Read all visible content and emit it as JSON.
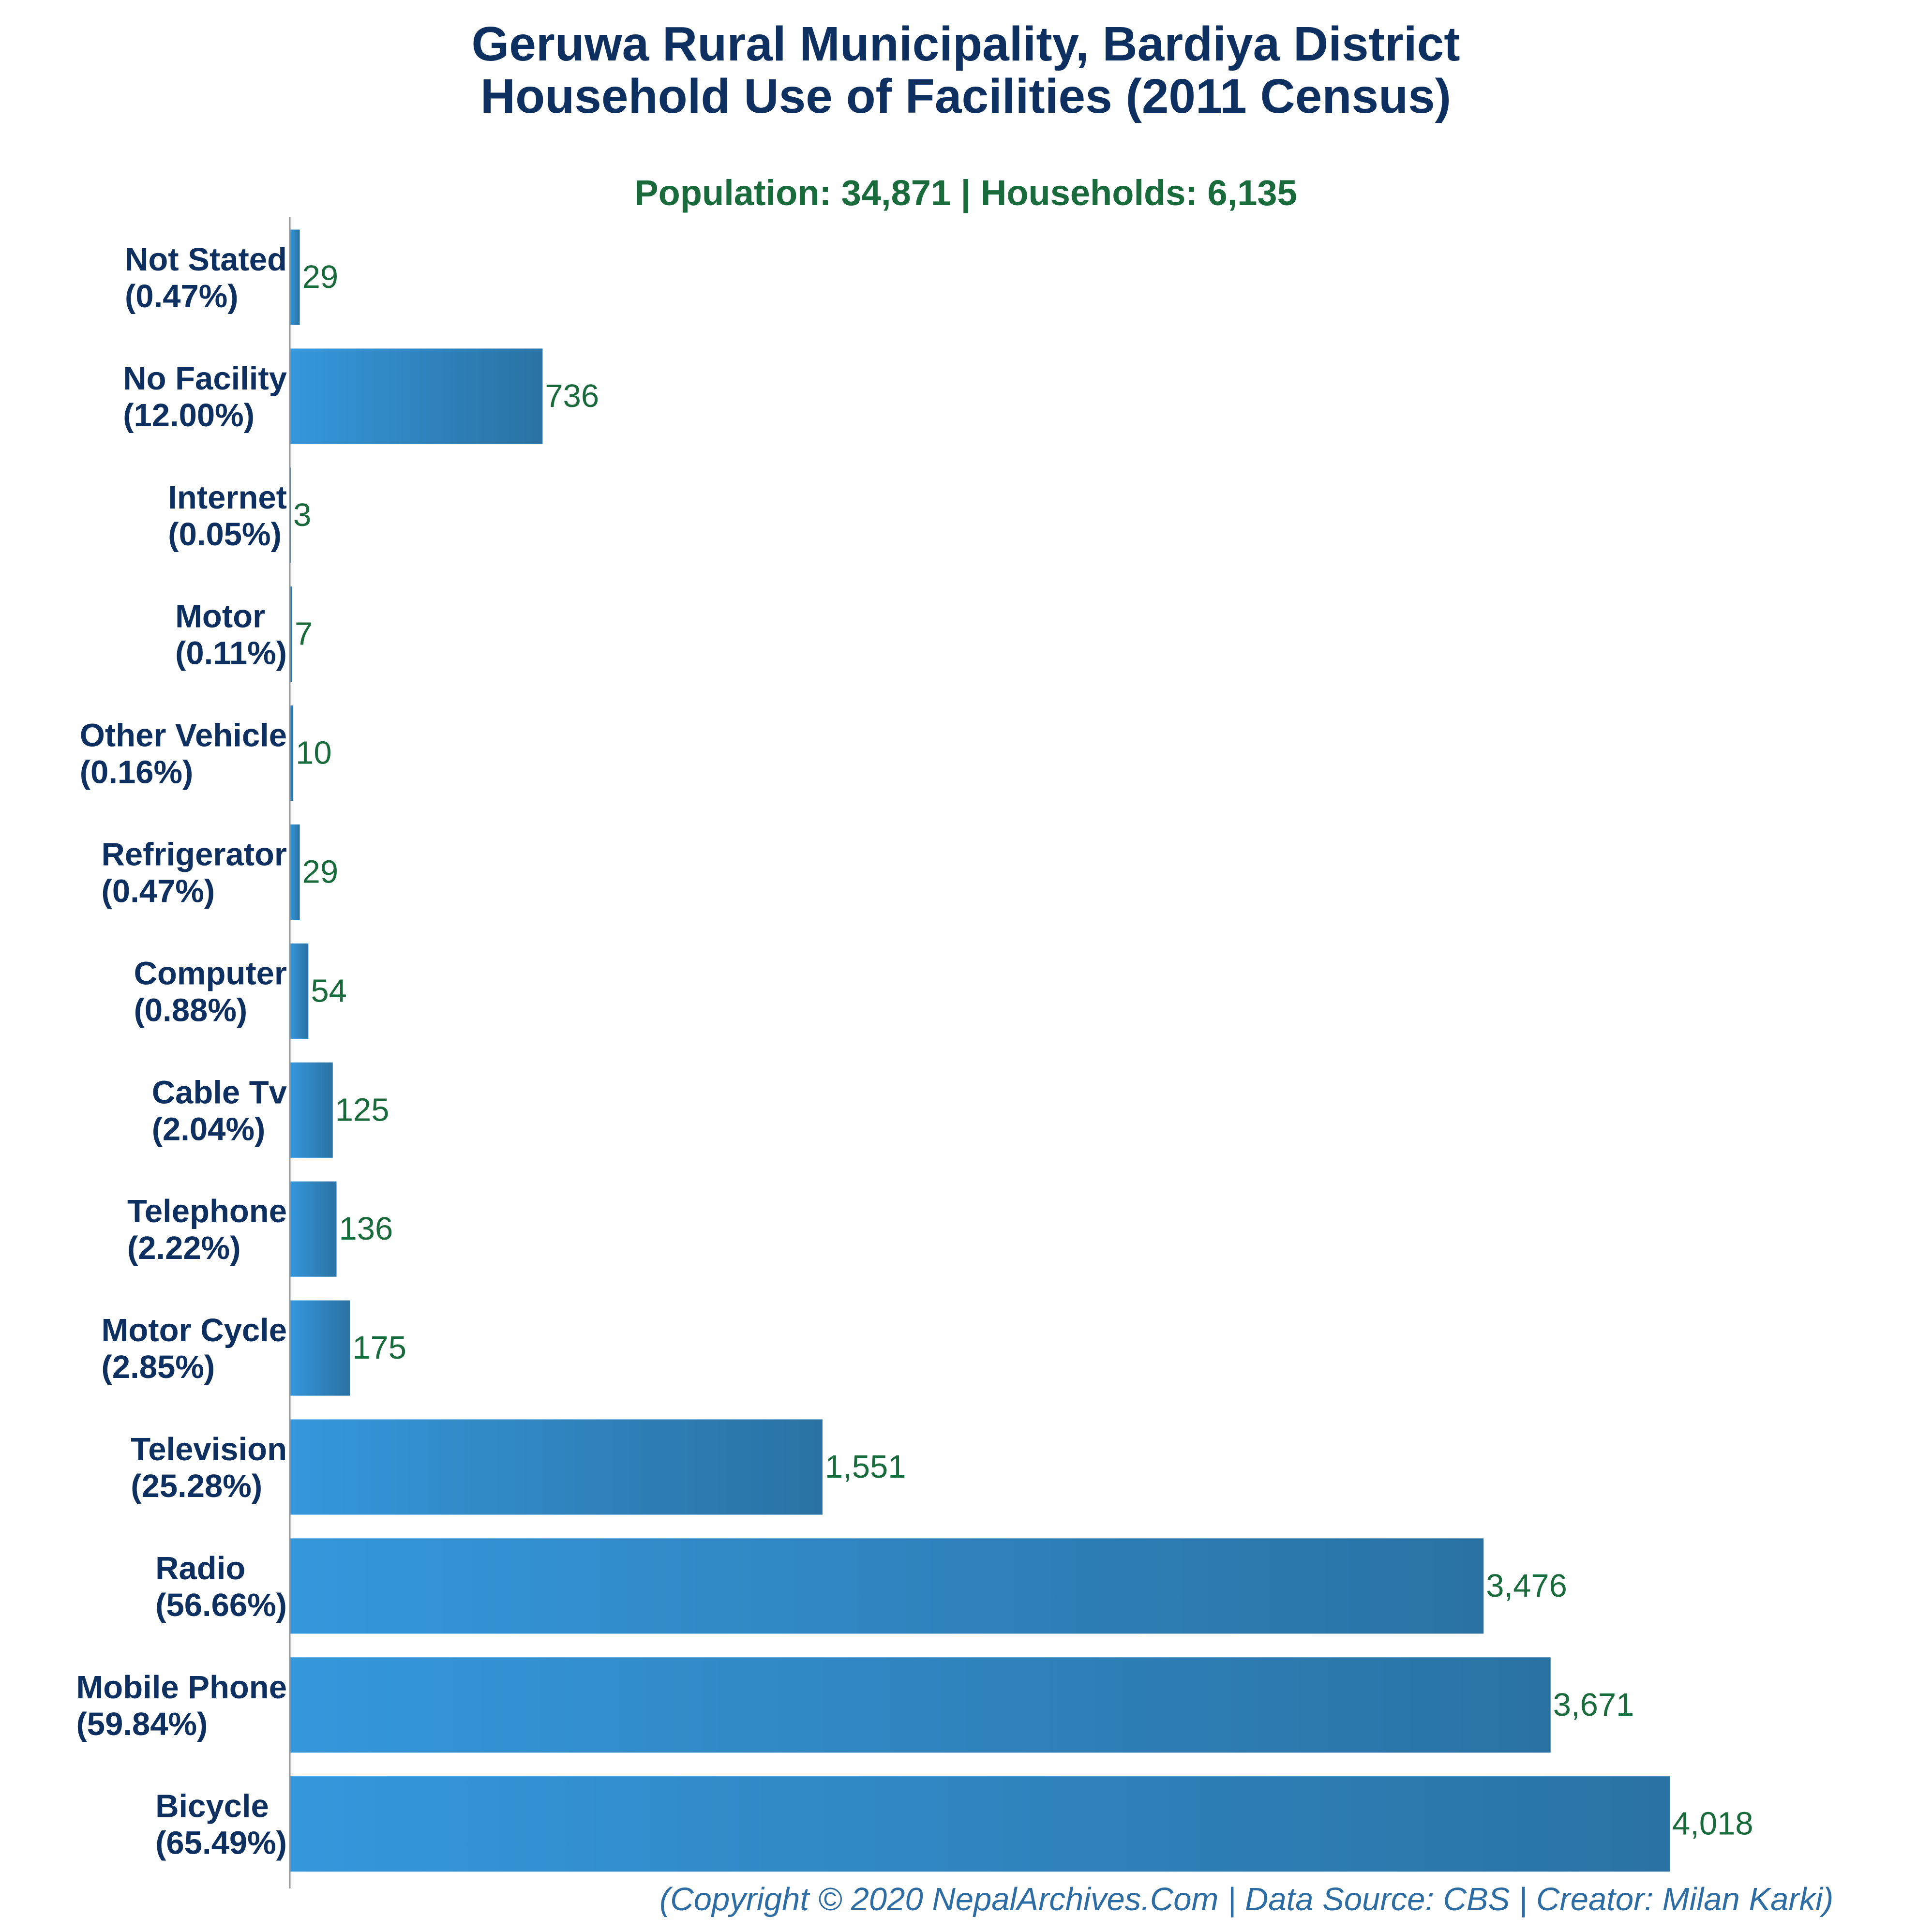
{
  "header": {
    "title_line1": "Geruwa Rural Municipality, Bardiya District",
    "title_line2": "Household Use of Facilities (2011 Census)",
    "subtitle": "Population: 34,871 | Households: 6,135"
  },
  "footer": {
    "credit": "(Copyright © 2020 NepalArchives.Com | Data Source: CBS | Creator: Milan Karki)"
  },
  "chart_data": {
    "type": "bar",
    "orientation": "horizontal",
    "categories": [
      {
        "name": "Not Stated",
        "pct": "(0.47%)"
      },
      {
        "name": "No Facility",
        "pct": "(12.00%)"
      },
      {
        "name": "Internet",
        "pct": "(0.05%)"
      },
      {
        "name": "Motor",
        "pct": "(0.11%)"
      },
      {
        "name": "Other Vehicle",
        "pct": "(0.16%)"
      },
      {
        "name": "Refrigerator",
        "pct": "(0.47%)"
      },
      {
        "name": "Computer",
        "pct": "(0.88%)"
      },
      {
        "name": "Cable Tv",
        "pct": "(2.04%)"
      },
      {
        "name": "Telephone",
        "pct": "(2.22%)"
      },
      {
        "name": "Motor Cycle",
        "pct": "(2.85%)"
      },
      {
        "name": "Television",
        "pct": "(25.28%)"
      },
      {
        "name": "Radio",
        "pct": "(56.66%)"
      },
      {
        "name": "Mobile Phone",
        "pct": "(59.84%)"
      },
      {
        "name": "Bicycle",
        "pct": "(65.49%)"
      }
    ],
    "values": [
      29,
      736,
      3,
      7,
      10,
      29,
      54,
      125,
      136,
      175,
      1551,
      3476,
      3671,
      4018
    ],
    "value_labels": [
      "29",
      "736",
      "3",
      "7",
      "10",
      "29",
      "54",
      "125",
      "136",
      "175",
      "1,551",
      "3,476",
      "3,671",
      "4,018"
    ],
    "xlim": [
      0,
      4018
    ],
    "grid": false,
    "colors": {
      "bar_start": "#3597dc",
      "bar_end": "#2a72a3",
      "title": "#0d3060",
      "subtitle": "#1a6b3c",
      "value_label": "#1a6b3c",
      "footer": "#2e6da4",
      "axis": "#999999"
    }
  }
}
